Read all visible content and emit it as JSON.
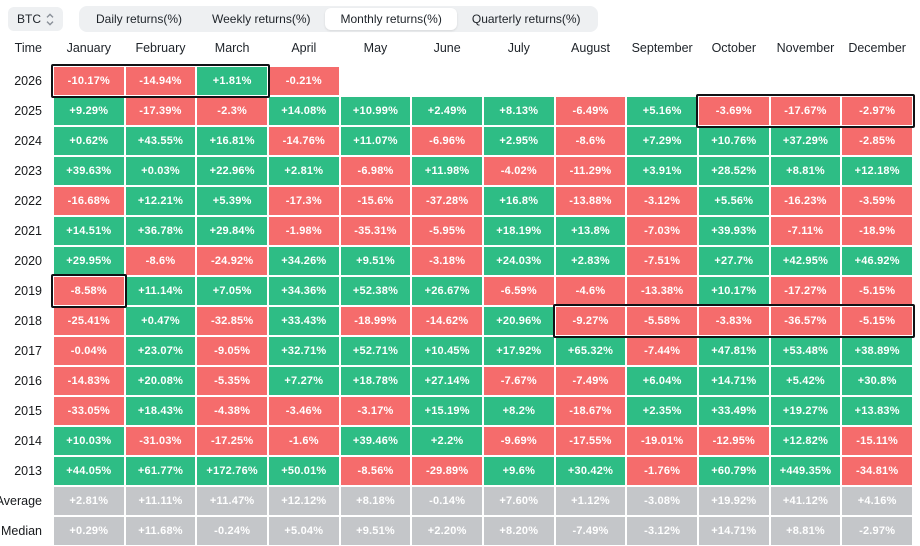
{
  "selector": {
    "label": "BTC",
    "icon": "sort-arrows-icon"
  },
  "tabs": [
    {
      "label": "Daily returns(%)",
      "active": false
    },
    {
      "label": "Weekly returns(%)",
      "active": false
    },
    {
      "label": "Monthly returns(%)",
      "active": true
    },
    {
      "label": "Quarterly returns(%)",
      "active": false
    }
  ],
  "colors": {
    "positive": "#2EBD85",
    "negative": "#F56C6C",
    "neutral": "#C4C6C9",
    "highlight_border": "#101114"
  },
  "table": {
    "columns": [
      "Time",
      "January",
      "February",
      "March",
      "April",
      "May",
      "June",
      "July",
      "August",
      "September",
      "October",
      "November",
      "December"
    ],
    "rows": [
      {
        "label": "2026",
        "type": "year",
        "values": [
          "-10.17%",
          "-14.94%",
          "+1.81%",
          "-0.21%",
          "",
          "",
          "",
          "",
          "",
          "",
          "",
          ""
        ]
      },
      {
        "label": "2025",
        "type": "year",
        "values": [
          "+9.29%",
          "-17.39%",
          "-2.3%",
          "+14.08%",
          "+10.99%",
          "+2.49%",
          "+8.13%",
          "-6.49%",
          "+5.16%",
          "-3.69%",
          "-17.67%",
          "-2.97%"
        ]
      },
      {
        "label": "2024",
        "type": "year",
        "values": [
          "+0.62%",
          "+43.55%",
          "+16.81%",
          "-14.76%",
          "+11.07%",
          "-6.96%",
          "+2.95%",
          "-8.6%",
          "+7.29%",
          "+10.76%",
          "+37.29%",
          "-2.85%"
        ]
      },
      {
        "label": "2023",
        "type": "year",
        "values": [
          "+39.63%",
          "+0.03%",
          "+22.96%",
          "+2.81%",
          "-6.98%",
          "+11.98%",
          "-4.02%",
          "-11.29%",
          "+3.91%",
          "+28.52%",
          "+8.81%",
          "+12.18%"
        ]
      },
      {
        "label": "2022",
        "type": "year",
        "values": [
          "-16.68%",
          "+12.21%",
          "+5.39%",
          "-17.3%",
          "-15.6%",
          "-37.28%",
          "+16.8%",
          "-13.88%",
          "-3.12%",
          "+5.56%",
          "-16.23%",
          "-3.59%"
        ]
      },
      {
        "label": "2021",
        "type": "year",
        "values": [
          "+14.51%",
          "+36.78%",
          "+29.84%",
          "-1.98%",
          "-35.31%",
          "-5.95%",
          "+18.19%",
          "+13.8%",
          "-7.03%",
          "+39.93%",
          "-7.11%",
          "-18.9%"
        ]
      },
      {
        "label": "2020",
        "type": "year",
        "values": [
          "+29.95%",
          "-8.6%",
          "-24.92%",
          "+34.26%",
          "+9.51%",
          "-3.18%",
          "+24.03%",
          "+2.83%",
          "-7.51%",
          "+27.7%",
          "+42.95%",
          "+46.92%"
        ]
      },
      {
        "label": "2019",
        "type": "year",
        "values": [
          "-8.58%",
          "+11.14%",
          "+7.05%",
          "+34.36%",
          "+52.38%",
          "+26.67%",
          "-6.59%",
          "-4.6%",
          "-13.38%",
          "+10.17%",
          "-17.27%",
          "-5.15%"
        ]
      },
      {
        "label": "2018",
        "type": "year",
        "values": [
          "-25.41%",
          "+0.47%",
          "-32.85%",
          "+33.43%",
          "-18.99%",
          "-14.62%",
          "+20.96%",
          "-9.27%",
          "-5.58%",
          "-3.83%",
          "-36.57%",
          "-5.15%"
        ]
      },
      {
        "label": "2017",
        "type": "year",
        "values": [
          "-0.04%",
          "+23.07%",
          "-9.05%",
          "+32.71%",
          "+52.71%",
          "+10.45%",
          "+17.92%",
          "+65.32%",
          "-7.44%",
          "+47.81%",
          "+53.48%",
          "+38.89%"
        ]
      },
      {
        "label": "2016",
        "type": "year",
        "values": [
          "-14.83%",
          "+20.08%",
          "-5.35%",
          "+7.27%",
          "+18.78%",
          "+27.14%",
          "-7.67%",
          "-7.49%",
          "+6.04%",
          "+14.71%",
          "+5.42%",
          "+30.8%"
        ]
      },
      {
        "label": "2015",
        "type": "year",
        "values": [
          "-33.05%",
          "+18.43%",
          "-4.38%",
          "-3.46%",
          "-3.17%",
          "+15.19%",
          "+8.2%",
          "-18.67%",
          "+2.35%",
          "+33.49%",
          "+19.27%",
          "+13.83%"
        ]
      },
      {
        "label": "2014",
        "type": "year",
        "values": [
          "+10.03%",
          "-31.03%",
          "-17.25%",
          "-1.6%",
          "+39.46%",
          "+2.2%",
          "-9.69%",
          "-17.55%",
          "-19.01%",
          "-12.95%",
          "+12.82%",
          "-15.11%"
        ]
      },
      {
        "label": "2013",
        "type": "year",
        "values": [
          "+44.05%",
          "+61.77%",
          "+172.76%",
          "+50.01%",
          "-8.56%",
          "-29.89%",
          "+9.6%",
          "+30.42%",
          "-1.76%",
          "+60.79%",
          "+449.35%",
          "-34.81%"
        ]
      },
      {
        "label": "Average",
        "type": "stat",
        "values": [
          "+2.81%",
          "+11.11%",
          "+11.47%",
          "+12.12%",
          "+8.18%",
          "-0.14%",
          "+7.60%",
          "+1.12%",
          "-3.08%",
          "+19.92%",
          "+41.12%",
          "+4.16%"
        ]
      },
      {
        "label": "Median",
        "type": "stat",
        "values": [
          "+0.29%",
          "+11.68%",
          "-0.24%",
          "+5.04%",
          "+9.51%",
          "+2.20%",
          "+8.20%",
          "-7.49%",
          "-3.12%",
          "+14.71%",
          "+8.81%",
          "-2.97%"
        ]
      }
    ],
    "highlights": [
      {
        "row": "2026",
        "from": 0,
        "to": 2
      },
      {
        "row": "2025",
        "from": 9,
        "to": 11
      },
      {
        "row": "2019",
        "from": 0,
        "to": 0
      },
      {
        "row": "2018",
        "from": 7,
        "to": 11
      }
    ]
  }
}
